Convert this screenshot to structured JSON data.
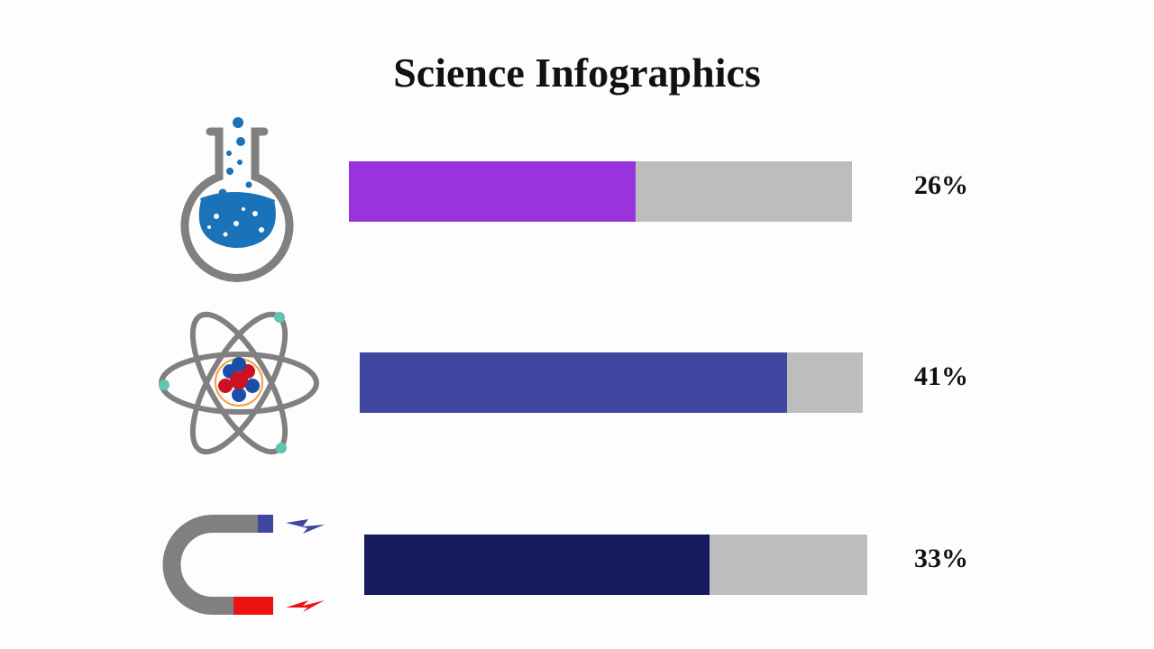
{
  "header": {
    "title": "Science Infographics"
  },
  "items": [
    {
      "label": "26%"
    },
    {
      "label": "41%"
    },
    {
      "label": "33%"
    }
  ]
}
